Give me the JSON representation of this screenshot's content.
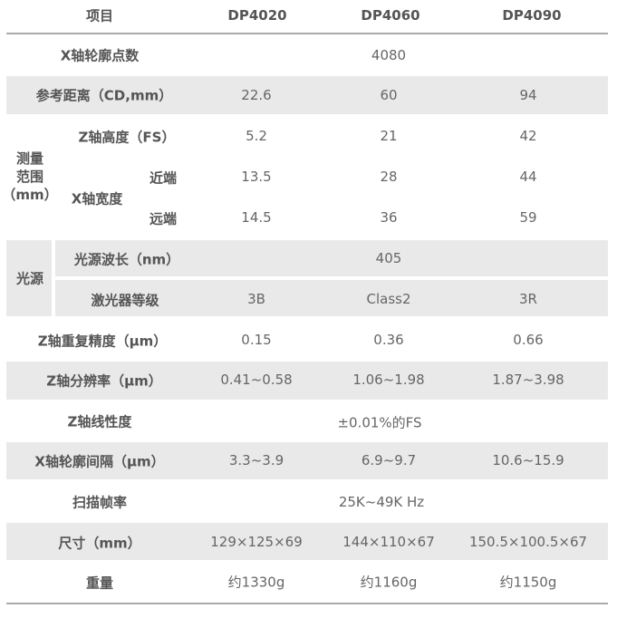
{
  "header": {
    "item": "项目",
    "models": [
      "DP4020",
      "DP4060",
      "DP4090"
    ]
  },
  "rows": {
    "x_points": {
      "label": "X轴轮廓点数",
      "value": "4080"
    },
    "ref_distance": {
      "label": "参考距离（CD,mm）",
      "values": [
        "22.6",
        "60",
        "94"
      ]
    },
    "range_group": {
      "label_line1": "测量",
      "label_line2": "范围",
      "label_line3": "（mm）"
    },
    "z_height": {
      "label": "Z轴高度（FS）",
      "values": [
        "5.2",
        "21",
        "42"
      ]
    },
    "x_width": {
      "label": "X轴宽度",
      "near_label": "近端",
      "near_values": [
        "13.5",
        "28",
        "44"
      ],
      "far_label": "远端",
      "far_values": [
        "14.5",
        "36",
        "59"
      ]
    },
    "light_group": {
      "label": "光源"
    },
    "wavelength": {
      "label": "光源波长（nm）",
      "value": "405"
    },
    "laser_class": {
      "label": "激光器等级",
      "values": [
        "3B",
        "Class2",
        "3R"
      ]
    },
    "z_repeat": {
      "label": "Z轴重复精度（μm）",
      "values": [
        "0.15",
        "0.36",
        "0.66"
      ]
    },
    "z_resolution": {
      "label": "Z轴分辨率（μm）",
      "values": [
        "0.41~0.58",
        "1.06~1.98",
        "1.87~3.98"
      ]
    },
    "z_linearity": {
      "label": "Z轴线性度",
      "value": "±0.01%的FS"
    },
    "x_interval": {
      "label": "X轴轮廓间隔（μm）",
      "values": [
        "3.3~3.9",
        "6.9~9.7",
        "10.6~15.9"
      ]
    },
    "frame_rate": {
      "label": "扫描帧率",
      "value": "25K~49K Hz"
    },
    "size": {
      "label": "尺寸（mm）",
      "values": [
        "129×125×69",
        "144×110×67",
        "150.5×100.5×67"
      ]
    },
    "weight": {
      "label": "重量",
      "values": [
        "约1330g",
        "约1160g",
        "约1150g"
      ]
    }
  },
  "colors": {
    "band": "#e9e9e9",
    "text": "#666666",
    "label": "#555555",
    "rule": "#aaaaaa"
  }
}
